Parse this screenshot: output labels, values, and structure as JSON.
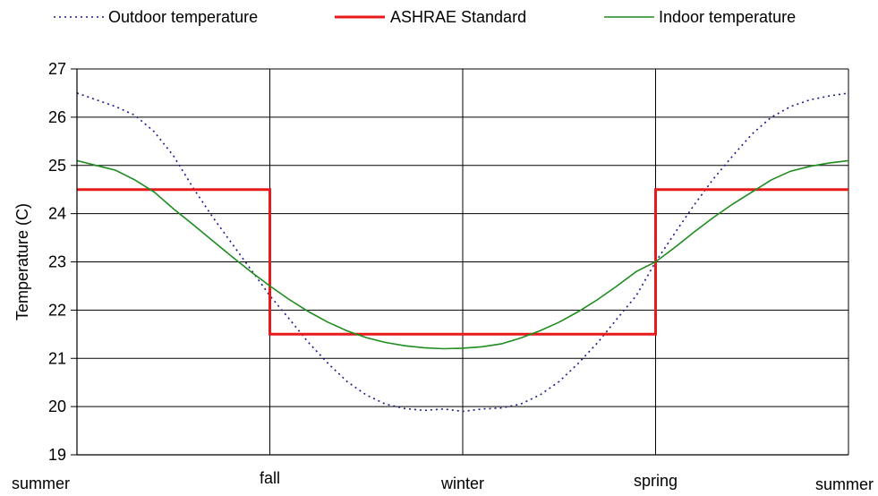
{
  "chart_data": {
    "type": "line",
    "title": "",
    "ylabel": "Temperature (C)",
    "xlabel": "",
    "ylim": [
      19,
      27
    ],
    "yticks": [
      19,
      20,
      21,
      22,
      23,
      24,
      25,
      26,
      27
    ],
    "grid": true,
    "legend_position": "top",
    "categories": [
      "summer",
      "fall",
      "winter",
      "spring",
      "summer"
    ],
    "x": [
      0,
      0.1,
      0.2,
      0.3,
      0.4,
      0.5,
      0.6,
      0.7,
      0.8,
      0.9,
      1.0,
      1.1,
      1.2,
      1.3,
      1.4,
      1.5,
      1.6,
      1.7,
      1.8,
      1.9,
      2.0,
      2.1,
      2.2,
      2.3,
      2.4,
      2.5,
      2.6,
      2.7,
      2.8,
      2.9,
      3.0,
      3.1,
      3.2,
      3.3,
      3.4,
      3.5,
      3.6,
      3.7,
      3.8,
      3.9,
      4.0
    ],
    "series": [
      {
        "name": "Outdoor temperature",
        "color": "#1a1a8c",
        "style": "dotted",
        "values": [
          26.5,
          26.36,
          26.22,
          26.04,
          25.7,
          25.2,
          24.55,
          23.95,
          23.4,
          22.85,
          22.3,
          21.82,
          21.33,
          20.9,
          20.52,
          20.24,
          20.05,
          19.96,
          19.92,
          19.95,
          19.9,
          19.95,
          19.97,
          20.05,
          20.24,
          20.52,
          20.9,
          21.33,
          21.82,
          22.3,
          23.0,
          23.6,
          24.18,
          24.72,
          25.2,
          25.65,
          26.0,
          26.22,
          26.36,
          26.44,
          26.5
        ]
      },
      {
        "name": "ASHRAE Standard",
        "color": "#e81b1b",
        "style": "solid",
        "step": true,
        "values": [
          24.5,
          24.5,
          24.5,
          24.5,
          24.5,
          24.5,
          24.5,
          24.5,
          24.5,
          24.5,
          21.5,
          21.5,
          21.5,
          21.5,
          21.5,
          21.5,
          21.5,
          21.5,
          21.5,
          21.5,
          21.5,
          21.5,
          21.5,
          21.5,
          21.5,
          21.5,
          21.5,
          21.5,
          21.5,
          21.5,
          24.5,
          24.5,
          24.5,
          24.5,
          24.5,
          24.5,
          24.5,
          24.5,
          24.5,
          24.5,
          24.5
        ]
      },
      {
        "name": "Indoor temperature",
        "color": "#1e8c1e",
        "style": "solid",
        "values": [
          25.1,
          25.0,
          24.9,
          24.7,
          24.45,
          24.1,
          23.78,
          23.45,
          23.12,
          22.8,
          22.5,
          22.22,
          21.97,
          21.75,
          21.57,
          21.43,
          21.33,
          21.26,
          21.22,
          21.2,
          21.21,
          21.24,
          21.3,
          21.42,
          21.57,
          21.75,
          21.97,
          22.22,
          22.5,
          22.8,
          23.0,
          23.3,
          23.62,
          23.92,
          24.2,
          24.45,
          24.7,
          24.88,
          24.98,
          25.05,
          25.1
        ]
      }
    ]
  }
}
